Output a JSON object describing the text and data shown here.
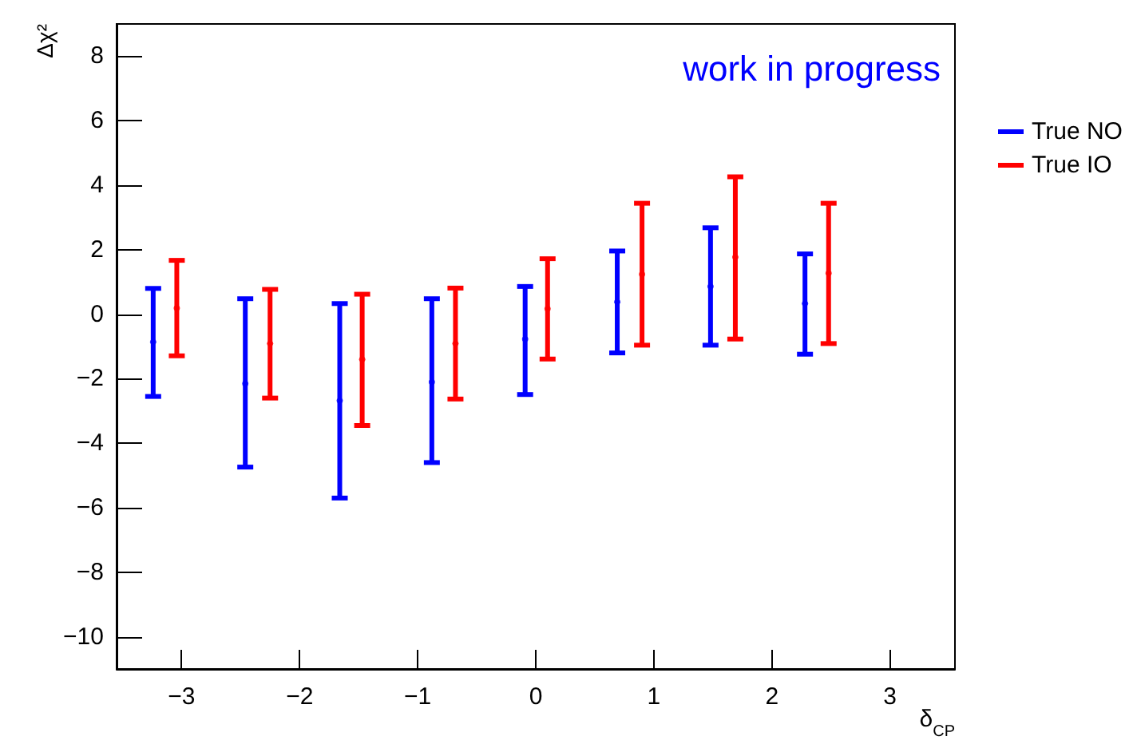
{
  "chart_data": {
    "type": "scatter",
    "xlabel": "δ$_{CP}$",
    "ylabel": "Δχ²",
    "annotations": [
      "work in progress"
    ],
    "xlim": [
      -3.55,
      3.55
    ],
    "xticks": [
      -3,
      -2,
      -1,
      0,
      1,
      2,
      3
    ],
    "ylim": [
      -11,
      9
    ],
    "yticks": [
      -10,
      -8,
      -6,
      -4,
      -2,
      0,
      2,
      4,
      6,
      8
    ],
    "grid": false,
    "legend": "right",
    "marker": "circle",
    "series": [
      {
        "name": "True NO",
        "color": "#0000ff",
        "x": [
          -3.24,
          -2.46,
          -1.66,
          -0.88,
          -0.09,
          0.69,
          1.48,
          2.28
        ],
        "values": [
          -0.86,
          -2.15,
          -2.68,
          -2.1,
          -0.77,
          0.38,
          0.86,
          0.33
        ],
        "errors": [
          [
            -2.55,
            0.8
          ],
          [
            -4.74,
            0.48
          ],
          [
            -5.7,
            0.33
          ],
          [
            -4.6,
            0.48
          ],
          [
            -2.49,
            0.86
          ],
          [
            -1.2,
            1.96
          ],
          [
            -0.96,
            2.68
          ],
          [
            -1.24,
            1.87
          ]
        ]
      },
      {
        "name": "True IO",
        "color": "#ff0000",
        "x": [
          -3.04,
          -2.25,
          -1.47,
          -0.68,
          0.1,
          0.9,
          1.69,
          2.48
        ],
        "values": [
          0.19,
          -0.91,
          -1.4,
          -0.91,
          0.17,
          1.24,
          1.77,
          1.27
        ],
        "errors": [
          [
            -1.29,
            1.67
          ],
          [
            -2.6,
            0.77
          ],
          [
            -3.45,
            0.62
          ],
          [
            -2.63,
            0.81
          ],
          [
            -1.39,
            1.72
          ],
          [
            -0.96,
            3.44
          ],
          [
            -0.77,
            4.26
          ],
          [
            -0.91,
            3.44
          ]
        ]
      }
    ]
  }
}
